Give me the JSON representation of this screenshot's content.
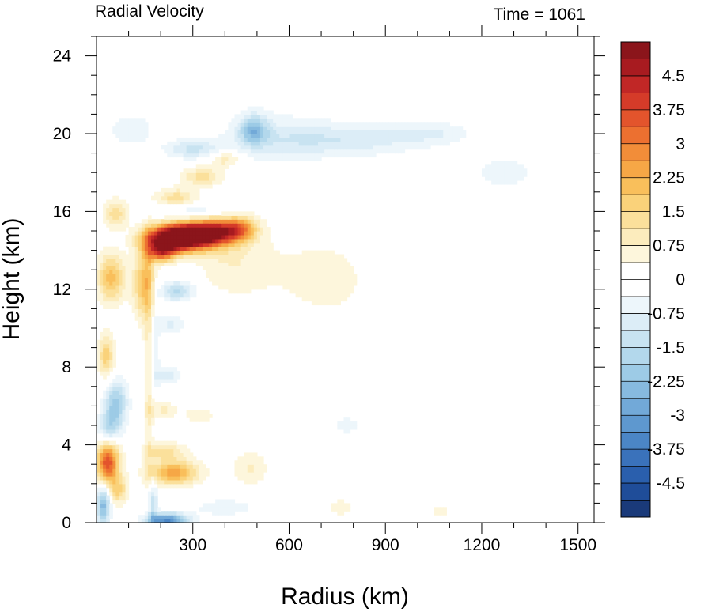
{
  "chart_data": {
    "type": "heatmap",
    "title": "Radial Velocity",
    "subtitle": "Time = 1061",
    "xlabel": "Radius (km)",
    "ylabel": "Height (km)",
    "xlim": [
      0,
      1550
    ],
    "ylim": [
      0,
      25
    ],
    "xticks": [
      300,
      600,
      900,
      1200,
      1500
    ],
    "yticks": [
      0,
      4,
      8,
      12,
      16,
      20,
      24
    ],
    "colorbar": {
      "levels": [
        -4.875,
        -4.5,
        -4.125,
        -3.75,
        -3.375,
        -3.0,
        -2.625,
        -2.25,
        -1.875,
        -1.5,
        -1.125,
        -0.75,
        -0.375,
        0.0,
        0.375,
        0.75,
        1.125,
        1.5,
        1.875,
        2.25,
        2.625,
        3.0,
        3.375,
        3.75,
        4.125,
        4.5,
        4.875
      ],
      "labels": [
        "4.5",
        "3.75",
        "3",
        "2.25",
        "1.5",
        "0.75",
        "0",
        "-0.75",
        "-1.5",
        "-2.25",
        "-3",
        "-3.75",
        "-4.5"
      ],
      "colors": [
        "#1a3a7a",
        "#1f4d99",
        "#2a5fad",
        "#3a72bb",
        "#4b86c6",
        "#5e98cf",
        "#72a9d8",
        "#87badf",
        "#9dcbe6",
        "#b3d8ec",
        "#c8e3f1",
        "#dcedf7",
        "#edf6fb",
        "#ffffff",
        "#ffffff",
        "#fdf6dc",
        "#fcecbd",
        "#fbe09b",
        "#fad27a",
        "#f9bf5b",
        "#f6a746",
        "#f28d39",
        "#ec7030",
        "#e3542c",
        "#d53b29",
        "#c12726",
        "#a81b20",
        "#8b151b"
      ]
    },
    "features": [
      {
        "r": 230,
        "z": 14.6,
        "u": 5.0,
        "sr": 55,
        "sz": 0.45
      },
      {
        "r": 300,
        "z": 14.8,
        "u": 4.4,
        "sr": 70,
        "sz": 0.5
      },
      {
        "r": 380,
        "z": 15.0,
        "u": 3.0,
        "sr": 60,
        "sz": 0.45
      },
      {
        "r": 450,
        "z": 15.2,
        "u": 1.7,
        "sr": 35,
        "sz": 0.4
      },
      {
        "r": 200,
        "z": 13.9,
        "u": 2.8,
        "sr": 30,
        "sz": 0.35
      },
      {
        "r": 250,
        "z": 16.7,
        "u": 1.4,
        "sr": 45,
        "sz": 0.35
      },
      {
        "r": 330,
        "z": 17.8,
        "u": 1.3,
        "sr": 45,
        "sz": 0.35
      },
      {
        "r": 400,
        "z": 18.7,
        "u": 1.1,
        "sr": 35,
        "sz": 0.3
      },
      {
        "r": 300,
        "z": 16.0,
        "u": -0.9,
        "sr": 70,
        "sz": 0.35
      },
      {
        "r": 300,
        "z": 19.2,
        "u": -1.2,
        "sr": 60,
        "sz": 0.35
      },
      {
        "r": 490,
        "z": 20.2,
        "u": -2.0,
        "sr": 30,
        "sz": 0.55
      },
      {
        "r": 60,
        "z": 15.9,
        "u": 1.4,
        "sr": 25,
        "sz": 0.5
      },
      {
        "r": 45,
        "z": 12.6,
        "u": 2.0,
        "sr": 30,
        "sz": 0.9
      },
      {
        "r": 150,
        "z": 12.3,
        "u": 2.0,
        "sr": 25,
        "sz": 1.3
      },
      {
        "r": 250,
        "z": 11.9,
        "u": -1.6,
        "sr": 40,
        "sz": 0.35
      },
      {
        "r": 30,
        "z": 8.6,
        "u": 1.7,
        "sr": 18,
        "sz": 0.8
      },
      {
        "r": 60,
        "z": 6.2,
        "u": -2.0,
        "sr": 25,
        "sz": 0.8
      },
      {
        "r": 40,
        "z": 4.9,
        "u": -1.5,
        "sr": 25,
        "sz": 0.6
      },
      {
        "r": 35,
        "z": 3.1,
        "u": 3.7,
        "sr": 25,
        "sz": 0.75
      },
      {
        "r": 70,
        "z": 1.7,
        "u": 1.5,
        "sr": 20,
        "sz": 0.5
      },
      {
        "r": 20,
        "z": 0.9,
        "u": -2.5,
        "sr": 15,
        "sz": 0.7
      },
      {
        "r": 240,
        "z": 2.6,
        "u": 2.5,
        "sr": 55,
        "sz": 0.45
      },
      {
        "r": 210,
        "z": 3.7,
        "u": 1.3,
        "sr": 45,
        "sz": 0.3
      },
      {
        "r": 220,
        "z": 0.15,
        "u": -3.5,
        "sr": 45,
        "sz": 0.25
      },
      {
        "r": 175,
        "z": 1.0,
        "u": -1.5,
        "sr": 10,
        "sz": 0.9
      },
      {
        "r": 165,
        "z": 8.0,
        "u": 1.0,
        "sr": 12,
        "sz": 4.5
      },
      {
        "r": 180,
        "z": 9.5,
        "u": -0.8,
        "sr": 12,
        "sz": 3.0
      },
      {
        "r": 220,
        "z": 7.6,
        "u": -0.9,
        "sr": 30,
        "sz": 0.35
      },
      {
        "r": 200,
        "z": 5.8,
        "u": 0.9,
        "sr": 30,
        "sz": 0.35
      },
      {
        "r": 230,
        "z": 10.2,
        "u": -0.8,
        "sr": 35,
        "sz": 0.35
      },
      {
        "r": 420,
        "z": 13.5,
        "u": 0.7,
        "sr": 80,
        "sz": 1.3
      },
      {
        "r": 700,
        "z": 12.5,
        "u": 0.5,
        "sr": 140,
        "sz": 2.0
      },
      {
        "r": 480,
        "z": 2.8,
        "u": 0.8,
        "sr": 40,
        "sz": 0.6
      },
      {
        "r": 320,
        "z": 5.5,
        "u": 0.5,
        "sr": 50,
        "sz": 0.5
      },
      {
        "r": 550,
        "z": 19.8,
        "u": -0.6,
        "sr": 120,
        "sz": 1.0
      },
      {
        "r": 780,
        "z": 19.7,
        "u": -1.0,
        "sr": 180,
        "sz": 0.6
      },
      {
        "r": 1050,
        "z": 20.1,
        "u": -0.6,
        "sr": 80,
        "sz": 0.4
      },
      {
        "r": 1270,
        "z": 18.0,
        "u": -0.5,
        "sr": 90,
        "sz": 0.8
      },
      {
        "r": 560,
        "z": 9.0,
        "u": -0.4,
        "sr": 90,
        "sz": 1.2
      },
      {
        "r": 780,
        "z": 5.0,
        "u": -0.4,
        "sr": 80,
        "sz": 0.9
      },
      {
        "r": 760,
        "z": 0.8,
        "u": 0.8,
        "sr": 30,
        "sz": 0.25
      },
      {
        "r": 1070,
        "z": 0.6,
        "u": 0.7,
        "sr": 20,
        "sz": 0.2
      },
      {
        "r": 400,
        "z": 0.8,
        "u": -0.7,
        "sr": 70,
        "sz": 0.3
      },
      {
        "r": 110,
        "z": 20.2,
        "u": -0.7,
        "sr": 50,
        "sz": 0.6
      }
    ]
  }
}
